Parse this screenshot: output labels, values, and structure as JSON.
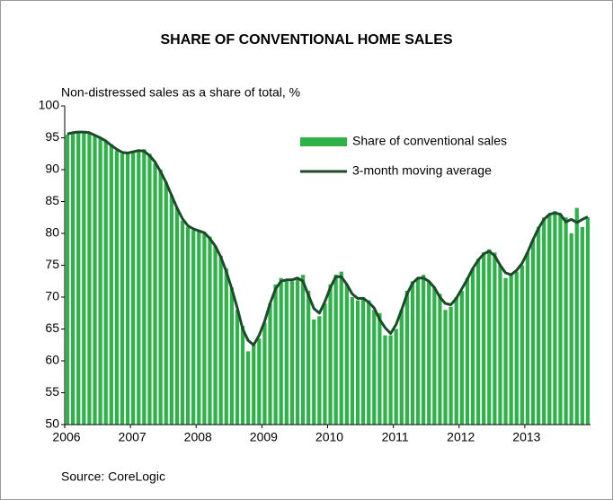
{
  "chart_data": {
    "type": "bar",
    "title": "SHARE OF CONVENTIONAL HOME SALES",
    "y_label": "Non-distressed sales as a share of total, %",
    "source": "Source: CoreLogic",
    "categories": [
      "2006",
      null,
      null,
      null,
      null,
      null,
      null,
      null,
      null,
      null,
      null,
      null,
      "2007",
      null,
      null,
      null,
      null,
      null,
      null,
      null,
      null,
      null,
      null,
      null,
      "2008",
      null,
      null,
      null,
      null,
      null,
      null,
      null,
      null,
      null,
      null,
      null,
      "2009",
      null,
      null,
      null,
      null,
      null,
      null,
      null,
      null,
      null,
      null,
      null,
      "2010",
      null,
      null,
      null,
      null,
      null,
      null,
      null,
      null,
      null,
      null,
      null,
      "2011",
      null,
      null,
      null,
      null,
      null,
      null,
      null,
      null,
      null,
      null,
      null,
      "2012",
      null,
      null,
      null,
      null,
      null,
      null,
      null,
      null,
      null,
      null,
      null,
      "2013",
      null,
      null,
      null,
      null,
      null,
      null,
      null,
      null,
      null,
      null,
      null
    ],
    "series": [
      {
        "name": "Share of conventional sales",
        "type": "bar",
        "color": "#2fb24a",
        "values": [
          95.5,
          95.8,
          96,
          96,
          95.8,
          95.5,
          95,
          94.5,
          94,
          93,
          92.5,
          92.5,
          92.8,
          93,
          93.2,
          92.5,
          91,
          90,
          88,
          86,
          84,
          82,
          81,
          80.5,
          80.5,
          80.2,
          79.5,
          78,
          76.5,
          74.5,
          71.5,
          68,
          65.5,
          61.5,
          62.5,
          63.5,
          66,
          69,
          72,
          73,
          72.5,
          72.5,
          73,
          73.5,
          71,
          66.5,
          67,
          69,
          72,
          73.5,
          74,
          72,
          70,
          69.5,
          70,
          69.5,
          68,
          67.5,
          64,
          64,
          65,
          68,
          71,
          72.5,
          73,
          73.5,
          72.5,
          71.5,
          70.5,
          68,
          68.5,
          70,
          71,
          73,
          74.5,
          76,
          77,
          77.5,
          77,
          75,
          73,
          73.5,
          74,
          75,
          77,
          79,
          81,
          82.5,
          83,
          83.5,
          83,
          82.5,
          80,
          84,
          81,
          82.5
        ]
      },
      {
        "name": "3-month moving average",
        "type": "line",
        "color": "#1d4a2a",
        "values": [
          95.6,
          95.8,
          95.9,
          95.9,
          95.8,
          95.4,
          95,
          94.5,
          93.8,
          93.2,
          92.7,
          92.6,
          92.8,
          93,
          92.9,
          92.2,
          91.2,
          89.7,
          88,
          86,
          84,
          82.3,
          81.2,
          80.7,
          80.4,
          80.1,
          79.2,
          78,
          76.3,
          74,
          71.3,
          68.3,
          65,
          63.2,
          62.5,
          64,
          66.2,
          69,
          71.3,
          72.5,
          72.7,
          72.7,
          73,
          72.5,
          70.3,
          68.2,
          67.5,
          69.3,
          71.5,
          73.2,
          73.2,
          72,
          70.5,
          69.8,
          69.8,
          69.2,
          68.3,
          66.5,
          65.2,
          64.3,
          65.7,
          68,
          70.5,
          72.2,
          73,
          73,
          72.5,
          71.5,
          70,
          69,
          68.8,
          69.8,
          71.3,
          72.8,
          74.5,
          75.8,
          76.8,
          77.2,
          76.5,
          75,
          73.8,
          73.5,
          74.2,
          75.3,
          77,
          79,
          80.8,
          82.2,
          83,
          83.2,
          83,
          81.8,
          82.2,
          81.7,
          82.2,
          82.6
        ]
      }
    ],
    "ylim": [
      50,
      100
    ],
    "yticks": [
      50,
      55,
      60,
      65,
      70,
      75,
      80,
      85,
      90,
      95,
      100
    ],
    "legend": "upper right"
  }
}
